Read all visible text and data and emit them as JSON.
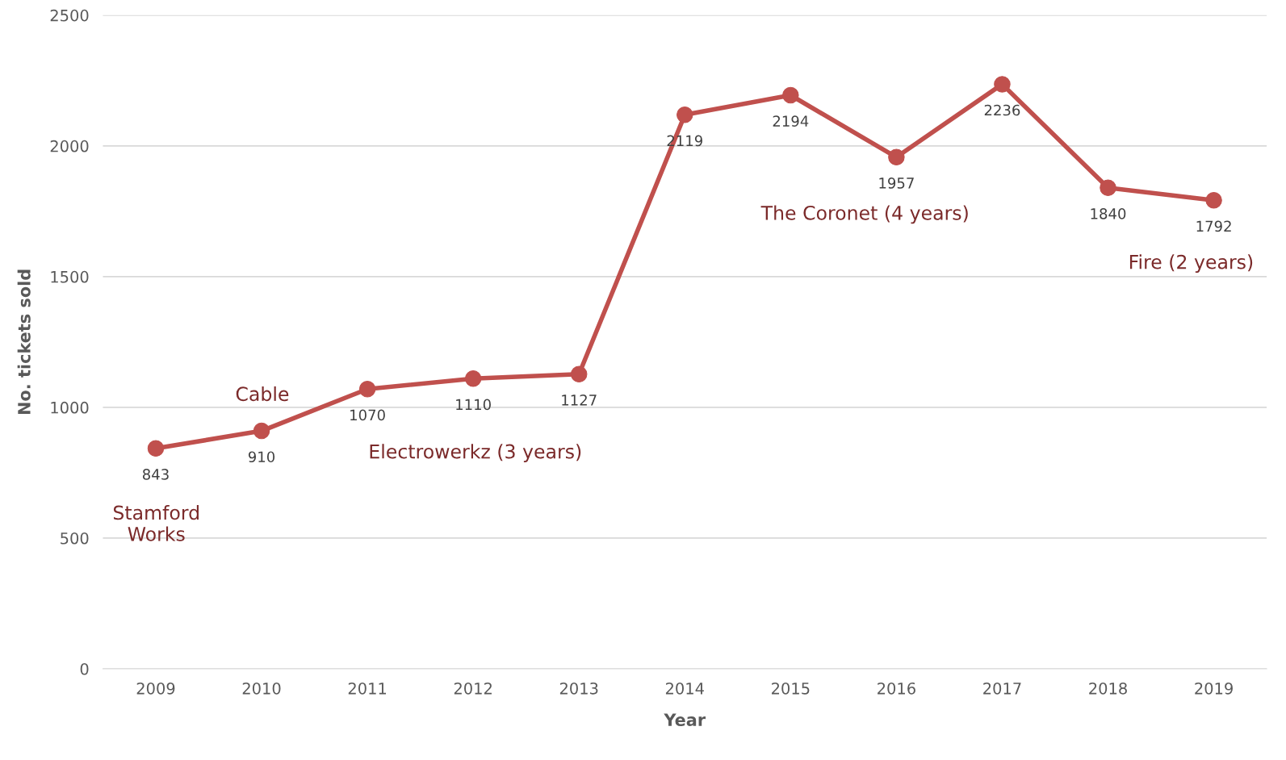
{
  "chart_data": {
    "type": "line",
    "xlabel": "Year",
    "ylabel": "No. tickets sold",
    "categories": [
      "2009",
      "2010",
      "2011",
      "2012",
      "2013",
      "2014",
      "2015",
      "2016",
      "2017",
      "2018",
      "2019"
    ],
    "series": [
      {
        "color": "#c0504d",
        "values": [
          843,
          910,
          1070,
          1110,
          1127,
          2119,
          2194,
          1957,
          2236,
          1840,
          1792
        ]
      }
    ],
    "ylim": [
      0,
      2500
    ],
    "yticks": [
      0,
      500,
      1000,
      1500,
      2000,
      2500
    ],
    "grid": "y",
    "marker": "circle",
    "line_style": "solid",
    "data_labels": true,
    "legend": false,
    "annotations": [
      "Stamford\nWorks",
      "Cable",
      "Electrowerkz (3 years)",
      "The Coronet (4 years)",
      "Fire (2 years)"
    ]
  }
}
